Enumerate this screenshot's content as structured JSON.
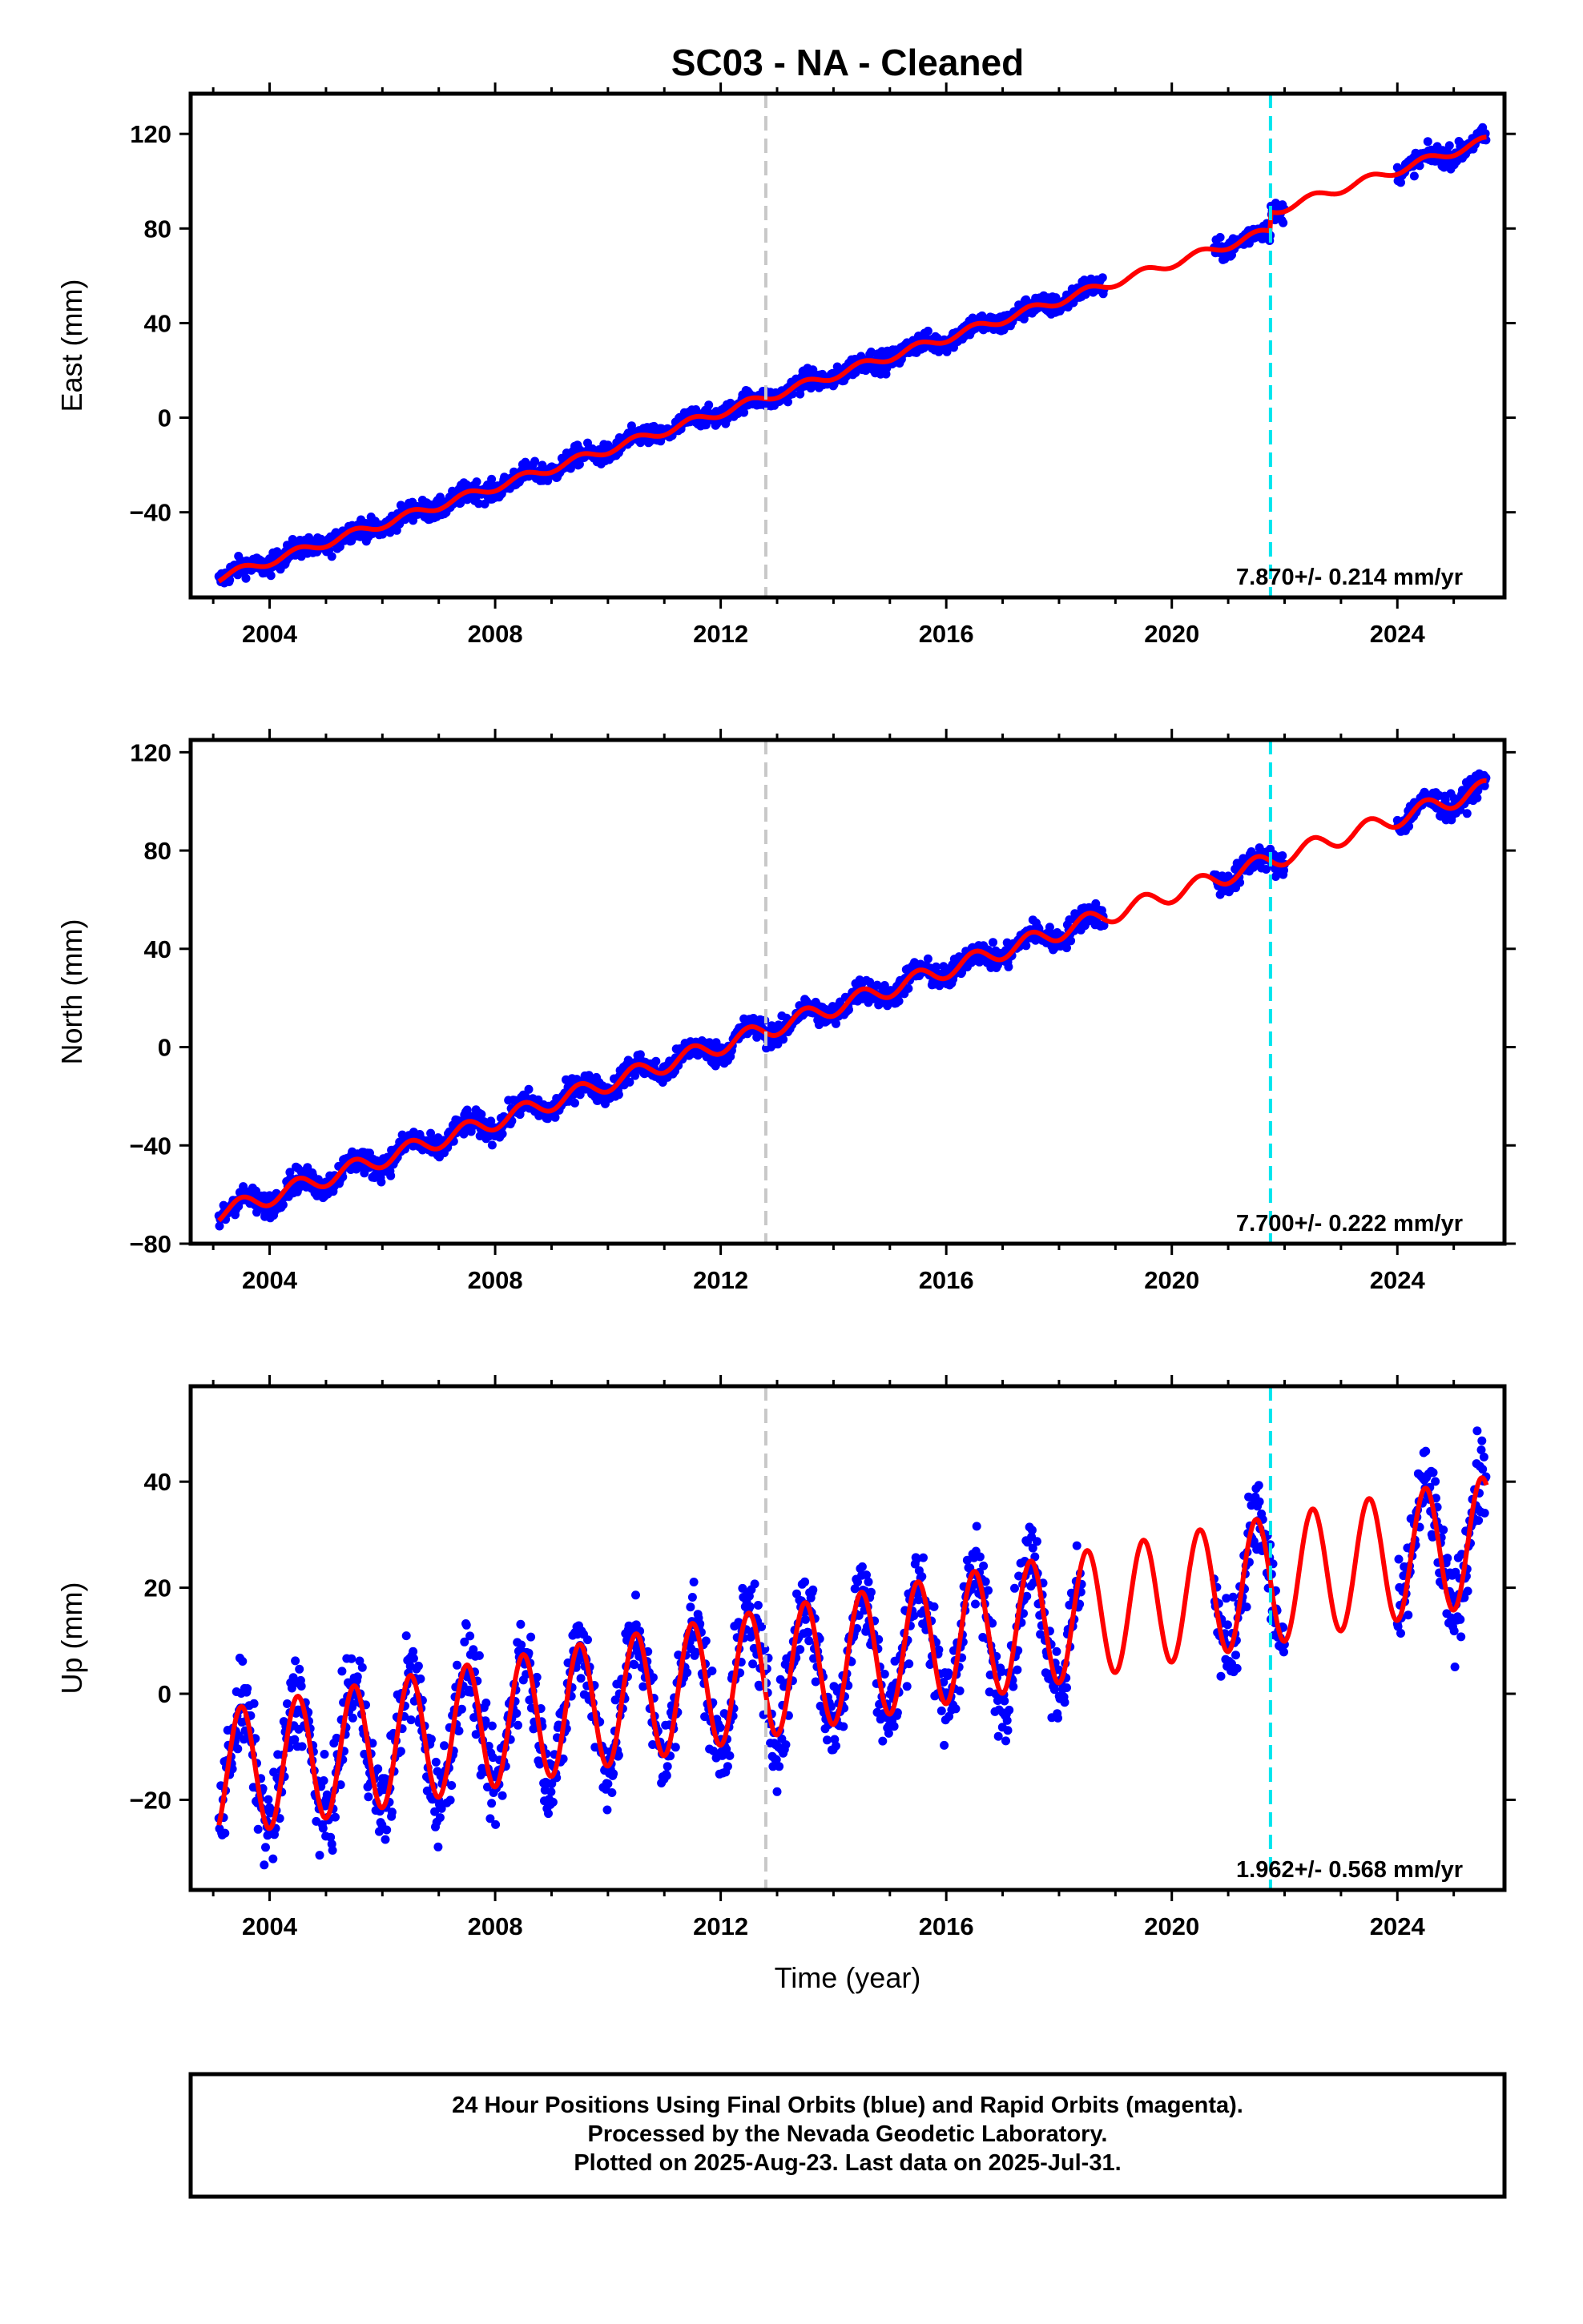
{
  "chart_data": {
    "type": "scatter",
    "title": "SC03  - NA - Cleaned",
    "x_tick_labels": [
      "2004",
      "2008",
      "2012",
      "2016",
      "2020",
      "2024"
    ],
    "xlim": [
      2002.6,
      2025.9
    ],
    "colors": {
      "obs": "#0000ff",
      "model": "#ff0000",
      "gap": "#c8c8c8",
      "event": "#00e5ee"
    },
    "vertical_lines": [
      {
        "x": 2012.8,
        "style": "dashed",
        "color": "gray"
      },
      {
        "x": 2021.75,
        "style": "dashed",
        "color": "cyan"
      }
    ],
    "panels": [
      {
        "ylabel": "East (mm)",
        "ylim": [
          -76,
          137
        ],
        "y_ticks": [
          -40,
          0,
          40,
          80,
          120
        ],
        "y_tick_labels": [
          "−40",
          "0",
          "40",
          "80",
          "120"
        ],
        "rate_label": "7.870+/- 0.214 mm/yr",
        "rate": 7.87,
        "intercept": -67,
        "t0": 2003.2,
        "amp": 1.8,
        "steps": [
          {
            "x": 2021.75,
            "value": 8
          }
        ],
        "noise": 3,
        "data_ranges": [
          [
            2003.1,
            2018.8
          ],
          [
            2020.75,
            2022.0
          ],
          [
            2024.0,
            2025.58
          ]
        ],
        "final_value": 120
      },
      {
        "ylabel": "North (mm)",
        "ylim": [
          -80,
          125
        ],
        "y_ticks": [
          -80,
          -40,
          0,
          40,
          80,
          120
        ],
        "y_tick_labels": [
          "−80",
          "−40",
          "0",
          "40",
          "80",
          "120"
        ],
        "rate_label": "7.700+/- 0.222 mm/yr",
        "rate": 7.7,
        "intercept": -67,
        "t0": 2003.2,
        "amp": 3.5,
        "steps": [],
        "noise": 3.5,
        "data_ranges": [
          [
            2003.1,
            2018.8
          ],
          [
            2020.75,
            2022.0
          ],
          [
            2024.0,
            2025.58
          ]
        ],
        "final_value": 118
      },
      {
        "ylabel": "Up (mm)",
        "ylim": [
          -37,
          58
        ],
        "y_ticks": [
          -20,
          0,
          20,
          40
        ],
        "y_tick_labels": [
          "−20",
          "0",
          "20",
          "40"
        ],
        "rate_label": "1.962+/- 0.568 mm/yr",
        "rate": 1.962,
        "intercept": -15,
        "t0": 2003.2,
        "amp": 12,
        "steps": [],
        "noise": 6,
        "data_ranges": [
          [
            2003.1,
            2018.4
          ],
          [
            2020.75,
            2022.0
          ],
          [
            2024.0,
            2025.58
          ]
        ],
        "final_value": 38
      }
    ],
    "xlabel": "Time (year)"
  },
  "footer": {
    "line1": "24 Hour Positions Using Final Orbits (blue) and Rapid Orbits (magenta).",
    "line2": "Processed by the Nevada Geodetic Laboratory.",
    "line3": "Plotted on 2025-Aug-23. Last data on 2025-Jul-31."
  }
}
